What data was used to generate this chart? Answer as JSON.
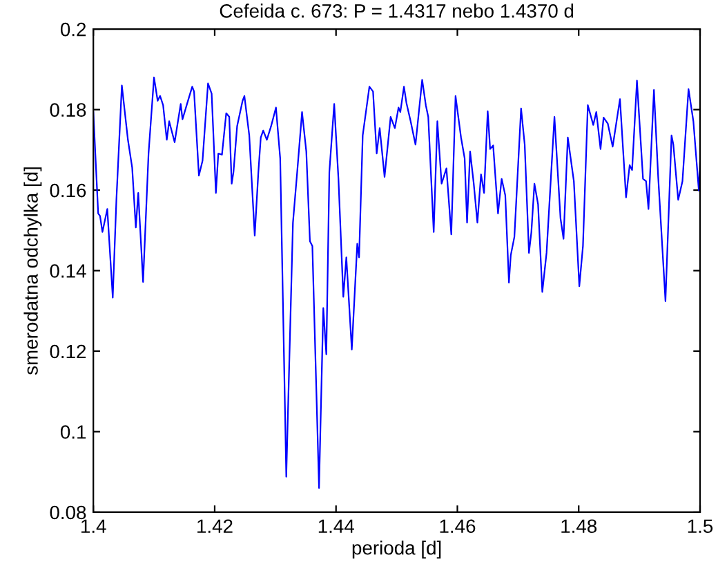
{
  "chart_data": {
    "type": "line",
    "title": "Cefeida c. 673: P = 1.4317 nebo 1.4370 d",
    "xlabel": "perioda [d]",
    "ylabel": "smerodatna odchylka [d]",
    "xlim": [
      1.4,
      1.5
    ],
    "xticks": [
      1.4,
      1.42,
      1.44,
      1.46,
      1.48,
      1.5
    ],
    "ylim": [
      0.08,
      0.2
    ],
    "yticks": [
      0.08,
      0.1,
      0.12,
      0.14,
      0.16,
      0.18,
      0.2
    ],
    "grid": false,
    "legend": false,
    "marker": "none",
    "line_style": "solid",
    "series": [
      {
        "color": "#0000ff",
        "x": [
          1.4,
          1.4008,
          1.4011,
          1.4015,
          1.4023,
          1.4032,
          1.4038,
          1.4047,
          1.4057,
          1.4064,
          1.407,
          1.4074,
          1.4082,
          1.4091,
          1.41,
          1.4106,
          1.411,
          1.4115,
          1.4121,
          1.4125,
          1.4134,
          1.4144,
          1.4147,
          1.4155,
          1.4163,
          1.4166,
          1.4174,
          1.418,
          1.4189,
          1.4195,
          1.4202,
          1.4206,
          1.4212,
          1.4219,
          1.4224,
          1.4228,
          1.4231,
          1.4237,
          1.4246,
          1.4249,
          1.4257,
          1.4266,
          1.4272,
          1.4276,
          1.428,
          1.4286,
          1.4293,
          1.4301,
          1.4308,
          1.4318,
          1.4329,
          1.4336,
          1.4344,
          1.4351,
          1.4357,
          1.4361,
          1.4372,
          1.4379,
          1.4384,
          1.4389,
          1.4397,
          1.4404,
          1.4412,
          1.4417,
          1.4426,
          1.4435,
          1.4438,
          1.4444,
          1.4455,
          1.4461,
          1.4467,
          1.4472,
          1.448,
          1.449,
          1.4497,
          1.4503,
          1.4506,
          1.4512,
          1.4516,
          1.4523,
          1.4531,
          1.4542,
          1.4548,
          1.4552,
          1.4561,
          1.4567,
          1.4574,
          1.4582,
          1.459,
          1.4597,
          1.4606,
          1.4612,
          1.4616,
          1.4621,
          1.4627,
          1.4633,
          1.4639,
          1.4644,
          1.465,
          1.4654,
          1.4659,
          1.4667,
          1.4673,
          1.4679,
          1.4685,
          1.4688,
          1.4694,
          1.4705,
          1.4711,
          1.4718,
          1.4722,
          1.4727,
          1.4733,
          1.474,
          1.4747,
          1.476,
          1.477,
          1.4775,
          1.4782,
          1.4792,
          1.4801,
          1.4807,
          1.4815,
          1.4824,
          1.4829,
          1.4836,
          1.4841,
          1.4848,
          1.4856,
          1.4868,
          1.4878,
          1.4884,
          1.4888,
          1.4896,
          1.4906,
          1.4911,
          1.4915,
          1.4924,
          1.4931,
          1.4943,
          1.4953,
          1.4956,
          1.4964,
          1.4971,
          1.4981,
          1.4989,
          1.4998,
          1.5
        ],
        "values": [
          0.1794,
          0.1542,
          0.1536,
          0.1496,
          0.1553,
          0.1333,
          0.1576,
          0.186,
          0.1725,
          0.1656,
          0.1507,
          0.1593,
          0.1372,
          0.1691,
          0.188,
          0.1822,
          0.1834,
          0.1811,
          0.1725,
          0.1771,
          0.1719,
          0.1814,
          0.1776,
          0.1817,
          0.1857,
          0.1845,
          0.1636,
          0.1673,
          0.1865,
          0.184,
          0.1593,
          0.1691,
          0.1688,
          0.1791,
          0.1782,
          0.1616,
          0.1645,
          0.1759,
          0.1822,
          0.1834,
          0.1736,
          0.1487,
          0.1645,
          0.1731,
          0.1748,
          0.1725,
          0.1759,
          0.1805,
          0.1679,
          0.0888,
          0.1519,
          0.1645,
          0.1794,
          0.1696,
          0.1473,
          0.1461,
          0.086,
          0.1307,
          0.1192,
          0.1645,
          0.1814,
          0.1628,
          0.1335,
          0.1433,
          0.1204,
          0.1467,
          0.1433,
          0.1736,
          0.1857,
          0.1845,
          0.1691,
          0.1754,
          0.1633,
          0.1782,
          0.1754,
          0.1805,
          0.1794,
          0.1857,
          0.1817,
          0.1771,
          0.1713,
          0.1874,
          0.1811,
          0.1782,
          0.1496,
          0.1771,
          0.1616,
          0.1654,
          0.149,
          0.1834,
          0.1731,
          0.1679,
          0.1519,
          0.1696,
          0.1616,
          0.1519,
          0.1639,
          0.1593,
          0.1796,
          0.1702,
          0.1711,
          0.1542,
          0.1628,
          0.1587,
          0.137,
          0.1438,
          0.1484,
          0.1803,
          0.1713,
          0.1444,
          0.1496,
          0.1616,
          0.1565,
          0.1347,
          0.1444,
          0.1782,
          0.153,
          0.1479,
          0.1731,
          0.1622,
          0.1361,
          0.1461,
          0.1811,
          0.1762,
          0.1794,
          0.1702,
          0.178,
          0.1765,
          0.1708,
          0.1826,
          0.1582,
          0.1662,
          0.165,
          0.1872,
          0.1628,
          0.1622,
          0.1553,
          0.1849,
          0.1633,
          0.1324,
          0.1736,
          0.1713,
          0.1576,
          0.1622,
          0.1851,
          0.1771,
          0.1599,
          0.167
        ]
      }
    ]
  }
}
